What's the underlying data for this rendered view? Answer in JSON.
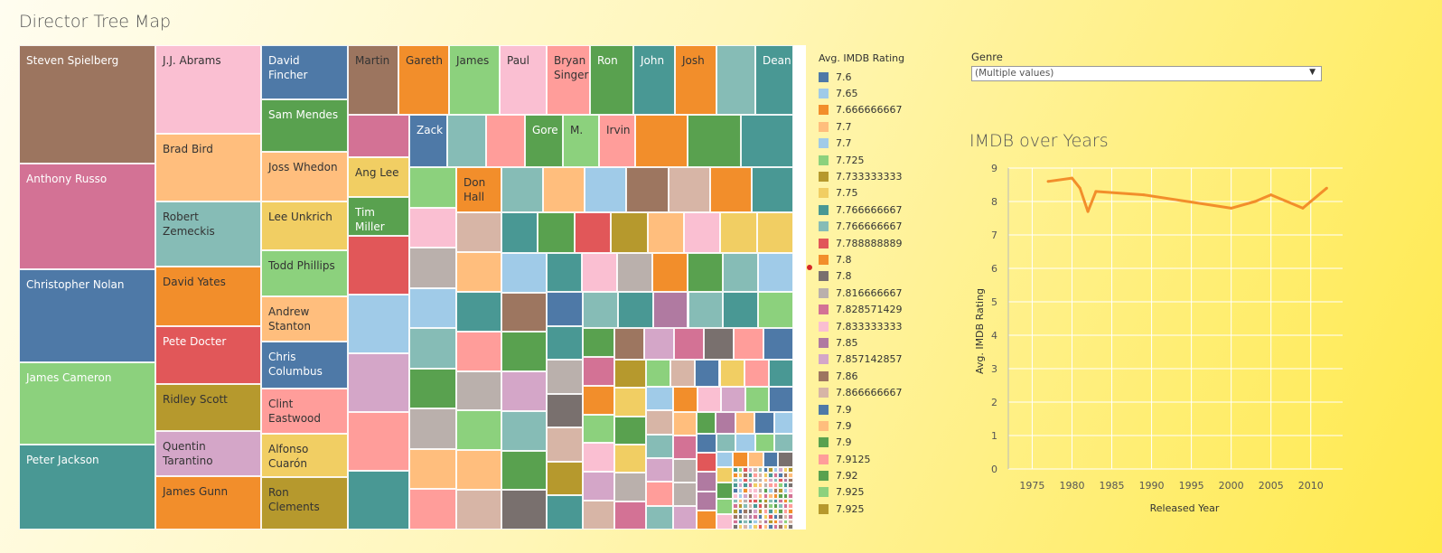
{
  "header": {
    "title": "Director Tree Map"
  },
  "treemap": {
    "labeled": [
      {
        "label": "Steven Spielberg",
        "color": "#9c755f"
      },
      {
        "label": "Anthony Russo",
        "color": "#d37295"
      },
      {
        "label": "Christopher Nolan",
        "color": "#4e79a7"
      },
      {
        "label": "James Cameron",
        "color": "#8cd17d"
      },
      {
        "label": "Peter Jackson",
        "color": "#499894"
      },
      {
        "label": "J.J. Abrams",
        "color": "#fabfd2"
      },
      {
        "label": "Brad Bird",
        "color": "#ffbe7d"
      },
      {
        "label": "Robert Zemeckis",
        "color": "#86bcb6"
      },
      {
        "label": "David Yates",
        "color": "#f28e2b"
      },
      {
        "label": "Pete Docter",
        "color": "#e15759"
      },
      {
        "label": "Ridley Scott",
        "color": "#b6992d"
      },
      {
        "label": "Quentin Tarantino",
        "color": "#d4a6c8"
      },
      {
        "label": "James Gunn",
        "color": "#f28e2b"
      },
      {
        "label": "David Fincher",
        "color": "#4e79a7"
      },
      {
        "label": "Sam Mendes",
        "color": "#59a14f"
      },
      {
        "label": "Joss Whedon",
        "color": "#ffbe7d"
      },
      {
        "label": "Lee Unkrich",
        "color": "#f1ce63"
      },
      {
        "label": "Todd Phillips",
        "color": "#8cd17d"
      },
      {
        "label": "Andrew Stanton",
        "color": "#ffbe7d"
      },
      {
        "label": "Chris Columbus",
        "color": "#4e79a7"
      },
      {
        "label": "Clint Eastwood",
        "color": "#ff9d9a"
      },
      {
        "label": "Alfonso Cuarón",
        "color": "#f1ce63"
      },
      {
        "label": "Ron Clements",
        "color": "#b6992d"
      },
      {
        "label": "Martin",
        "color": "#9c755f"
      },
      {
        "label": "Gareth",
        "color": "#f28e2b"
      },
      {
        "label": "James",
        "color": "#8cd17d"
      },
      {
        "label": "Paul",
        "color": "#fabfd2"
      },
      {
        "label": "Bryan Singer",
        "color": "#ff9d9a"
      },
      {
        "label": "Ron",
        "color": "#59a14f"
      },
      {
        "label": "John",
        "color": "#499894"
      },
      {
        "label": "Josh",
        "color": "#f28e2b"
      },
      {
        "label": "",
        "color": "#86bcb6"
      },
      {
        "label": "Dean",
        "color": "#499894"
      },
      {
        "label": "",
        "color": "#d37295"
      },
      {
        "label": "Ang Lee",
        "color": "#f1ce63"
      },
      {
        "label": "Tim Miller",
        "color": "#59a14f"
      },
      {
        "label": "Zack",
        "color": "#4e79a7"
      },
      {
        "label": "Gore",
        "color": "#59a14f"
      },
      {
        "label": "M.",
        "color": "#8cd17d"
      },
      {
        "label": "Irvin",
        "color": "#ff9d9a"
      },
      {
        "label": "Don Hall",
        "color": "#f28e2b"
      }
    ],
    "palette": [
      "#4e79a7",
      "#a0cbe8",
      "#f28e2b",
      "#ffbe7d",
      "#59a14f",
      "#8cd17d",
      "#b6992d",
      "#f1ce63",
      "#499894",
      "#86bcb6",
      "#e15759",
      "#ff9d9a",
      "#79706e",
      "#bab0ac",
      "#d37295",
      "#fabfd2",
      "#b07aa1",
      "#d4a6c8",
      "#9d7660",
      "#d7b5a6"
    ]
  },
  "legend": {
    "title": "Avg. IMDB Rating",
    "items": [
      {
        "label": "7.6",
        "color": "#4e79a7"
      },
      {
        "label": "7.65",
        "color": "#a0cbe8"
      },
      {
        "label": "7.666666667",
        "color": "#f28e2b"
      },
      {
        "label": "7.7",
        "color": "#ffbe7d"
      },
      {
        "label": "7.7",
        "color": "#a0cbe8"
      },
      {
        "label": "7.725",
        "color": "#8cd17d"
      },
      {
        "label": "7.733333333",
        "color": "#b6992d"
      },
      {
        "label": "7.75",
        "color": "#f1ce63"
      },
      {
        "label": "7.766666667",
        "color": "#499894"
      },
      {
        "label": "7.766666667",
        "color": "#86bcb6"
      },
      {
        "label": "7.788888889",
        "color": "#e15759"
      },
      {
        "label": "7.8",
        "color": "#f28e2b"
      },
      {
        "label": "7.8",
        "color": "#79706e"
      },
      {
        "label": "7.816666667",
        "color": "#bab0ac"
      },
      {
        "label": "7.828571429",
        "color": "#d37295"
      },
      {
        "label": "7.833333333",
        "color": "#fabfd2"
      },
      {
        "label": "7.85",
        "color": "#b07aa1"
      },
      {
        "label": "7.857142857",
        "color": "#d4a6c8"
      },
      {
        "label": "7.86",
        "color": "#9d7660"
      },
      {
        "label": "7.866666667",
        "color": "#d7b5a6"
      },
      {
        "label": "7.9",
        "color": "#4e79a7"
      },
      {
        "label": "7.9",
        "color": "#ffbe7d"
      },
      {
        "label": "7.9",
        "color": "#59a14f"
      },
      {
        "label": "7.9125",
        "color": "#ff9d9a"
      },
      {
        "label": "7.92",
        "color": "#59a14f"
      },
      {
        "label": "7.925",
        "color": "#8cd17d"
      },
      {
        "label": "7.925",
        "color": "#b6992d"
      }
    ]
  },
  "filter": {
    "label": "Genre",
    "value": "(Multiple values)",
    "arrow": "▼"
  },
  "chart_data": {
    "type": "line",
    "title": "IMDB over Years",
    "xlabel": "Released Year",
    "ylabel": "Avg. IMDB Rating",
    "x": [
      1977,
      1980,
      1981,
      1982,
      1983,
      1989,
      2000,
      2003,
      2005,
      2009,
      2012
    ],
    "values": [
      8.6,
      8.7,
      8.4,
      7.7,
      8.3,
      8.2,
      7.8,
      8.0,
      8.2,
      7.8,
      8.4
    ],
    "xlim": [
      1972,
      2014
    ],
    "ylim": [
      0,
      9
    ],
    "xticks": [
      1975,
      1980,
      1985,
      1990,
      1995,
      2000,
      2005,
      2010
    ],
    "yticks": [
      0,
      1,
      2,
      3,
      4,
      5,
      6,
      7,
      8,
      9
    ],
    "grid": true,
    "line_color": "#f28e2b"
  }
}
